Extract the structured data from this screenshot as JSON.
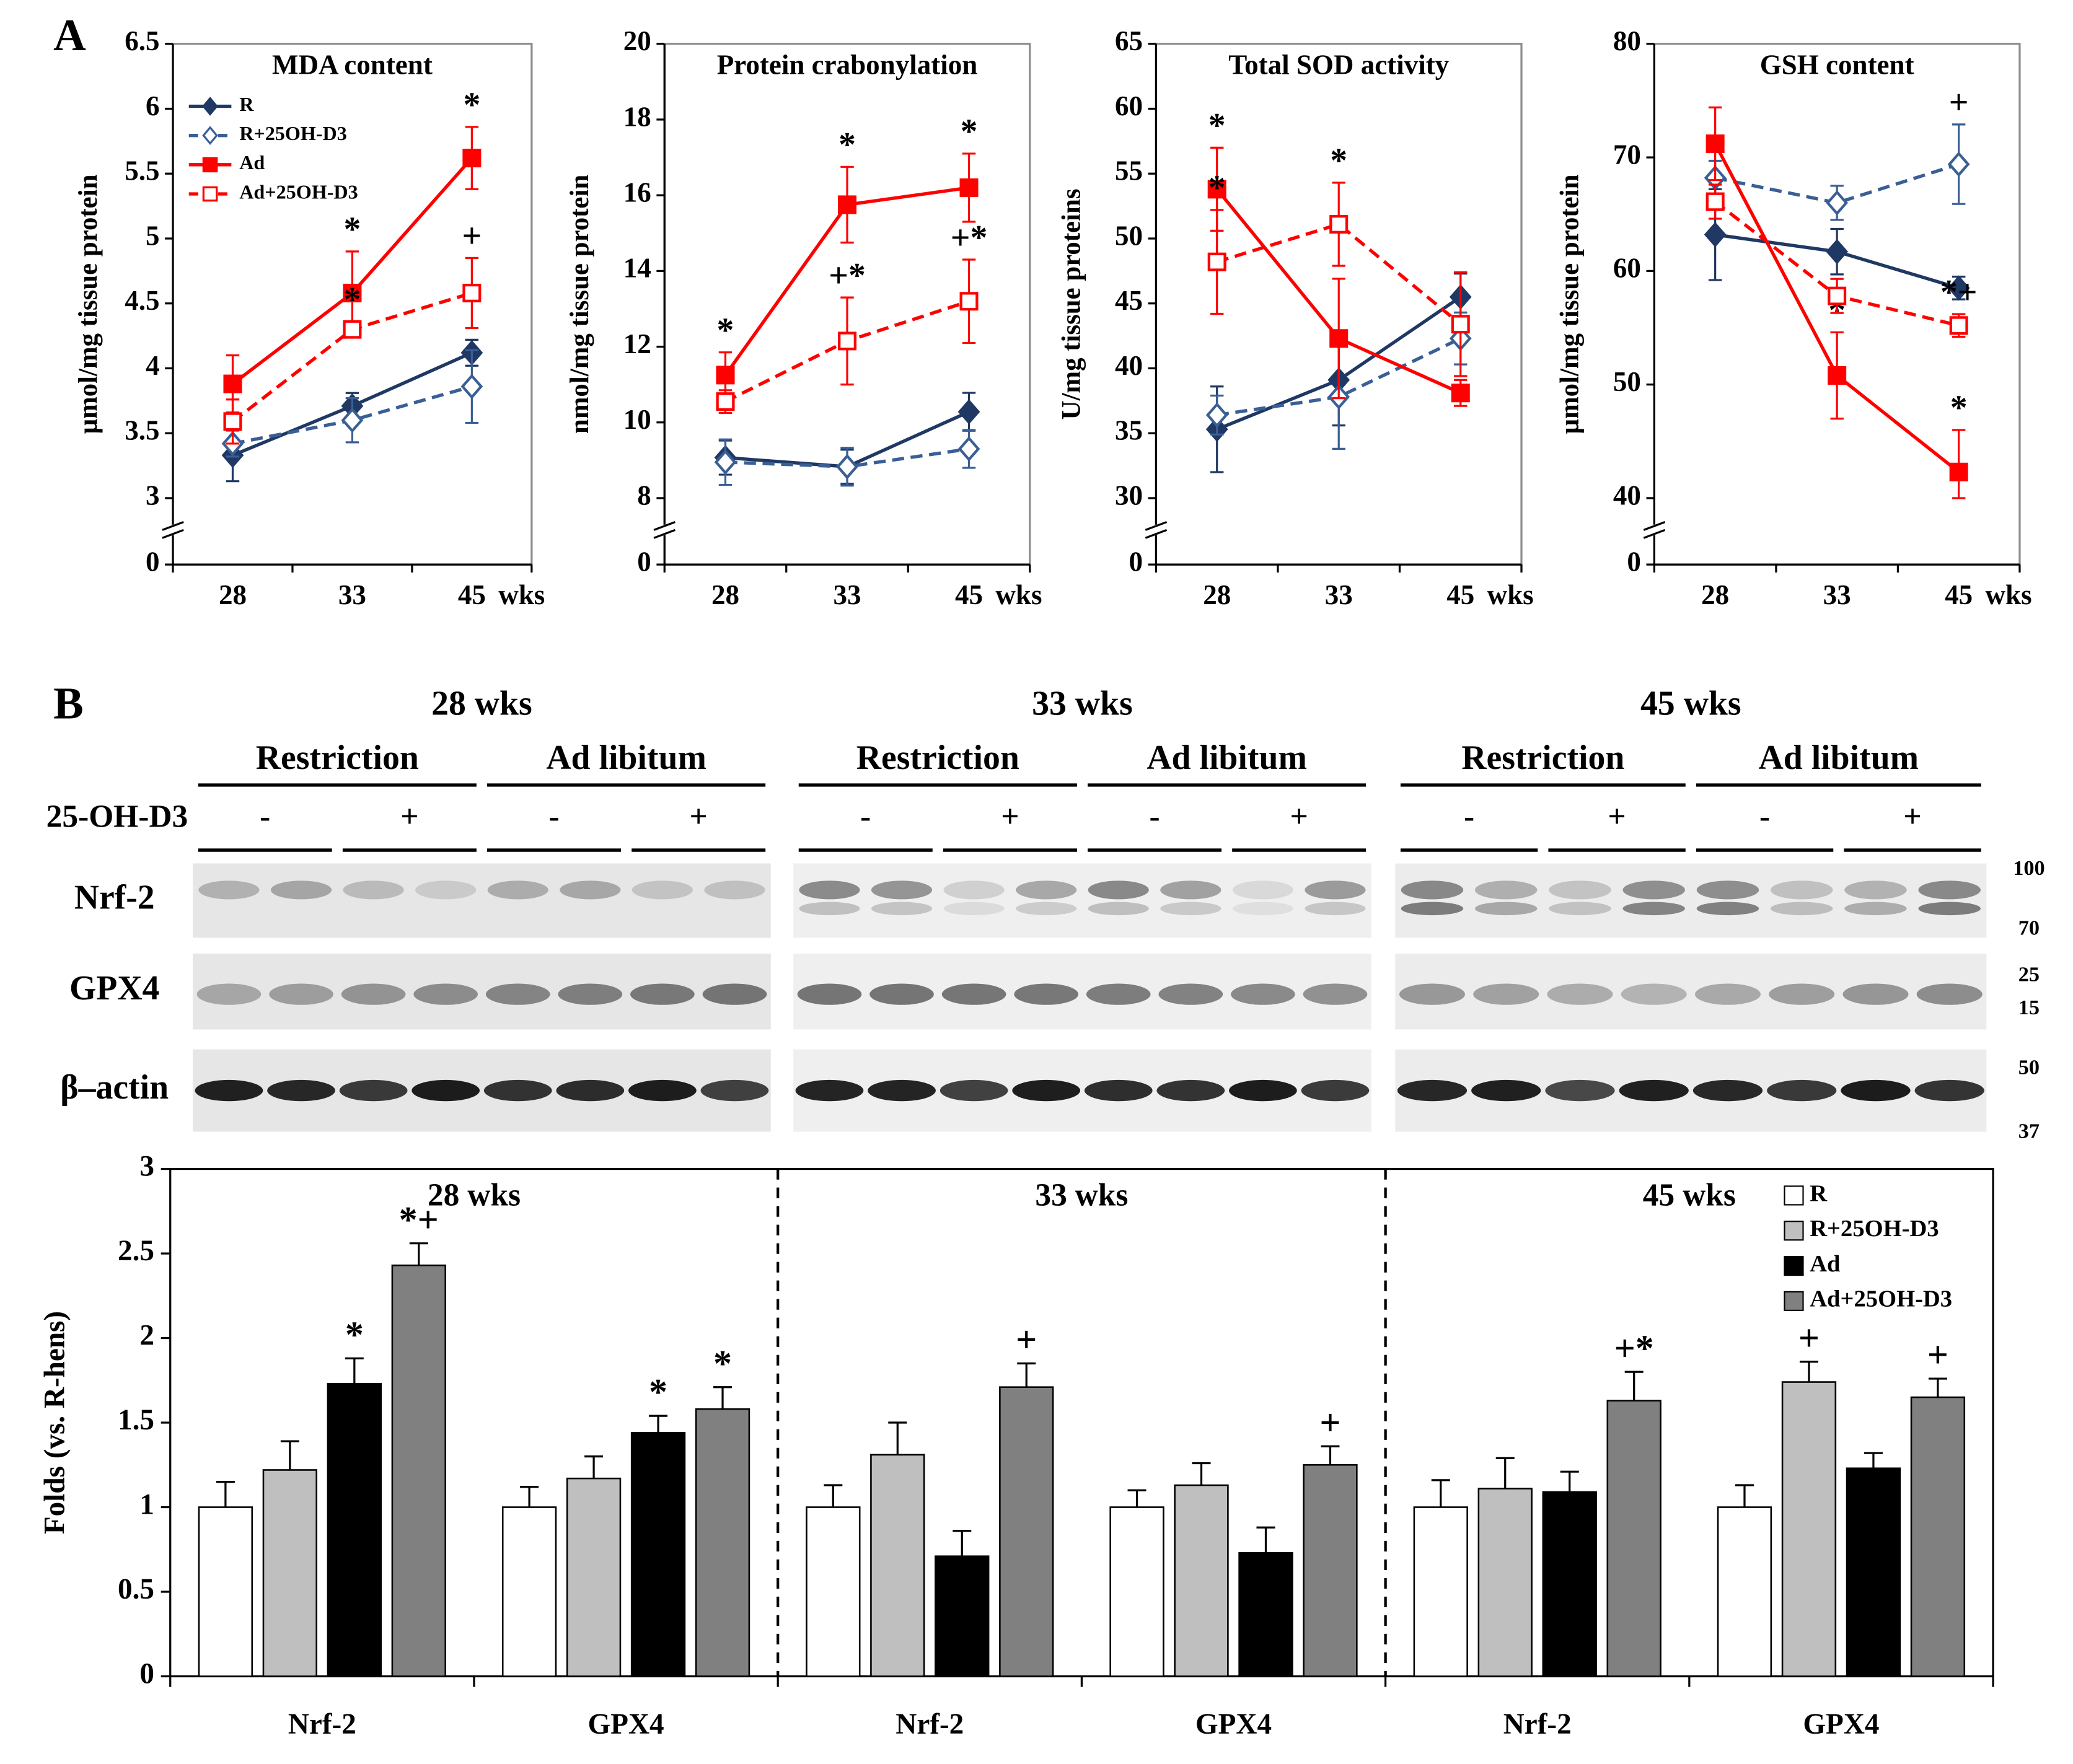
{
  "panel_labels": [
    "A",
    "B"
  ],
  "chart_data": [
    {
      "type": "line",
      "title": "MDA content",
      "ylabel": "μmol/mg tissue protein",
      "categories": [
        "28",
        "33",
        "45"
      ],
      "xlabel": "wks",
      "ylim": [
        0,
        6.5
      ],
      "ybreak": [
        0,
        3
      ],
      "yticks": [
        0,
        3,
        3.5,
        4,
        4.5,
        5,
        5.5,
        6,
        6.5
      ],
      "legend": "upper left",
      "series": [
        {
          "name": "R",
          "color": "#1f3864",
          "marker": "diamond",
          "filled": true,
          "dashed": false,
          "values": [
            3.33,
            3.71,
            4.12
          ],
          "errors": [
            0.2,
            0.1,
            0.1
          ]
        },
        {
          "name": "R+25OH-D3",
          "color": "#3a5f95",
          "marker": "diamond",
          "filled": false,
          "dashed": true,
          "values": [
            3.42,
            3.6,
            3.86
          ],
          "errors": [
            0.1,
            0.17,
            0.28
          ]
        },
        {
          "name": "Ad",
          "color": "#ff0000",
          "marker": "square",
          "filled": true,
          "dashed": false,
          "values": [
            3.88,
            4.58,
            5.62
          ],
          "errors": [
            0.22,
            0.32,
            0.24
          ],
          "sig": [
            null,
            "*",
            "*"
          ]
        },
        {
          "name": "Ad+25OH-D3",
          "color": "#ff0000",
          "marker": "square",
          "filled": false,
          "dashed": true,
          "values": [
            3.59,
            4.3,
            4.58
          ],
          "errors": [
            0.17,
            0.06,
            0.27
          ],
          "sig": [
            null,
            "*",
            "+"
          ]
        }
      ]
    },
    {
      "type": "line",
      "title": "Protein crabonylation",
      "ylabel": "nmol/mg tissue protein",
      "categories": [
        "28",
        "33",
        "45"
      ],
      "xlabel": "wks",
      "ylim": [
        0,
        20
      ],
      "ybreak": [
        0,
        8
      ],
      "yticks": [
        0,
        8,
        10,
        12,
        14,
        16,
        18,
        20
      ],
      "series": [
        {
          "color": "#1f3864",
          "marker": "diamond",
          "filled": true,
          "dashed": false,
          "values": [
            9.07,
            8.83,
            10.28
          ],
          "errors": [
            0.45,
            0.45,
            0.5
          ]
        },
        {
          "color": "#3a5f95",
          "marker": "diamond",
          "filled": false,
          "dashed": true,
          "values": [
            8.95,
            8.83,
            9.3
          ],
          "errors": [
            0.6,
            0.5,
            0.5
          ]
        },
        {
          "color": "#ff0000",
          "marker": "square",
          "filled": true,
          "dashed": false,
          "values": [
            11.25,
            15.75,
            16.2
          ],
          "errors": [
            0.6,
            1.0,
            0.9
          ],
          "sig": [
            "*",
            "*",
            "*"
          ]
        },
        {
          "color": "#ff0000",
          "marker": "square",
          "filled": false,
          "dashed": true,
          "values": [
            10.55,
            12.15,
            13.2
          ],
          "errors": [
            0.3,
            1.15,
            1.1
          ],
          "sig": [
            null,
            "+*",
            "+*"
          ]
        }
      ]
    },
    {
      "type": "line",
      "title": "Total SOD activity",
      "ylabel": "U/mg tissue proteins",
      "categories": [
        "28",
        "33",
        "45"
      ],
      "xlabel": "wks",
      "ylim": [
        0,
        65
      ],
      "ybreak": [
        0,
        30
      ],
      "yticks": [
        0,
        30,
        35,
        40,
        45,
        50,
        55,
        60,
        65
      ],
      "series": [
        {
          "color": "#1f3864",
          "marker": "diamond",
          "filled": true,
          "dashed": false,
          "values": [
            35.3,
            39.1,
            45.5
          ],
          "errors": [
            3.3,
            3.5,
            1.8
          ]
        },
        {
          "color": "#3a5f95",
          "marker": "diamond",
          "filled": false,
          "dashed": true,
          "values": [
            36.4,
            37.8,
            42.3
          ],
          "errors": [
            1.5,
            4,
            2
          ]
        },
        {
          "color": "#ff0000",
          "marker": "square",
          "filled": true,
          "dashed": false,
          "values": [
            53.8,
            42.3,
            38.1
          ],
          "errors": [
            3.2,
            4.6,
            1
          ],
          "sig": [
            "*",
            null,
            null
          ]
        },
        {
          "color": "#ff0000",
          "marker": "square",
          "filled": false,
          "dashed": true,
          "values": [
            48.2,
            51.1,
            43.4
          ],
          "errors": [
            4,
            3.2,
            4
          ],
          "sig": [
            "*",
            "*",
            null
          ]
        }
      ]
    },
    {
      "type": "line",
      "title": "GSH content",
      "ylabel": "μmol/mg tissue protein",
      "categories": [
        "28",
        "33",
        "45"
      ],
      "xlabel": "wks",
      "ylim": [
        0,
        80
      ],
      "ybreak": [
        0,
        40
      ],
      "yticks": [
        0,
        40,
        50,
        60,
        70,
        80
      ],
      "series": [
        {
          "color": "#1f3864",
          "marker": "diamond",
          "filled": true,
          "dashed": false,
          "values": [
            63.2,
            61.7,
            58.5
          ],
          "errors": [
            4,
            2,
            1
          ]
        },
        {
          "color": "#3a5f95",
          "marker": "diamond",
          "filled": false,
          "dashed": true,
          "values": [
            68.2,
            66,
            69.4
          ],
          "errors": [
            1.5,
            1.5,
            3.5
          ],
          "sig": [
            null,
            null,
            "+"
          ]
        },
        {
          "color": "#ff0000",
          "marker": "square",
          "filled": true,
          "dashed": false,
          "values": [
            71.2,
            50.8,
            42.3
          ],
          "errors": [
            3.2,
            3.8,
            3.7
          ],
          "sig": [
            null,
            "*",
            "*"
          ]
        },
        {
          "color": "#ff0000",
          "marker": "square",
          "filled": false,
          "dashed": true,
          "values": [
            66.1,
            57.8,
            55.2
          ],
          "errors": [
            1.5,
            1.5,
            1
          ],
          "sig": [
            null,
            null,
            "*+"
          ]
        }
      ]
    },
    {
      "type": "bar",
      "ylabel": "Folds (vs. R-hens)",
      "categories": [
        "Nrf-2",
        "GPX4",
        "Nrf-2",
        "GPX4",
        "Nrf-2",
        "GPX4"
      ],
      "groups": [
        "28 wks",
        "33 wks",
        "45 wks"
      ],
      "ylim": [
        0,
        3
      ],
      "yticks": [
        0,
        0.5,
        1,
        1.5,
        2,
        2.5,
        3
      ],
      "legend": "upper right",
      "series": [
        {
          "name": "R",
          "color": "#ffffff",
          "values": [
            1,
            1,
            1,
            1,
            1,
            1
          ],
          "errors": [
            0.15,
            0.12,
            0.13,
            0.1,
            0.16,
            0.13
          ]
        },
        {
          "name": "R+25OH-D3",
          "color": "#bfbfbf",
          "values": [
            1.22,
            1.17,
            1.31,
            1.13,
            1.11,
            1.74
          ],
          "errors": [
            0.17,
            0.13,
            0.19,
            0.13,
            0.18,
            0.12
          ],
          "sig": [
            null,
            null,
            null,
            null,
            null,
            "+"
          ]
        },
        {
          "name": "Ad",
          "color": "#000000",
          "values": [
            1.73,
            1.44,
            0.71,
            0.73,
            1.09,
            1.23
          ],
          "errors": [
            0.15,
            0.1,
            0.15,
            0.15,
            0.12,
            0.09
          ],
          "sig": [
            "*",
            "*",
            null,
            null,
            null,
            null
          ]
        },
        {
          "name": "Ad+25OH-D3",
          "color": "#808080",
          "values": [
            2.43,
            1.58,
            1.71,
            1.25,
            1.63,
            1.65
          ],
          "errors": [
            0.13,
            0.13,
            0.14,
            0.11,
            0.17,
            0.11
          ],
          "sig": [
            "*+",
            "*",
            "+",
            "+",
            "+*",
            "+"
          ]
        }
      ]
    }
  ],
  "blot": {
    "timepoints": [
      {
        "label": "28 wks",
        "groups": [
          "Restriction",
          "Ad libitum"
        ],
        "treatment": [
          "-",
          "+",
          "-",
          "+"
        ]
      },
      {
        "label": "33 wks",
        "groups": [
          "Restriction",
          "Ad libitum"
        ],
        "treatment": [
          "-",
          "+",
          "-",
          "+"
        ]
      },
      {
        "label": "45 wks",
        "groups": [
          "Restriction",
          "Ad libitum"
        ],
        "treatment": [
          "-",
          "+",
          "-",
          "+"
        ]
      }
    ],
    "treatment_label": "25-OH-D3",
    "rows": [
      "Nrf-2",
      "GPX4",
      "β–actin"
    ],
    "mw": [
      100,
      70,
      25,
      15,
      50,
      37
    ]
  }
}
